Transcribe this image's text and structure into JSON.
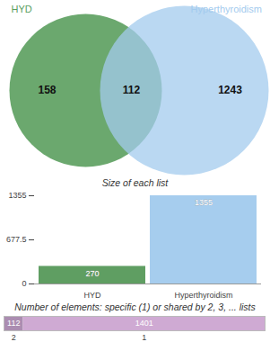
{
  "chart_data": [
    {
      "type": "venn",
      "sets": [
        {
          "name": "HYD",
          "color": "#5b9e5e",
          "only": 158
        },
        {
          "name": "Hyperthyroidism",
          "color": "#a3cbee",
          "only": 1243
        }
      ],
      "shared": 112
    },
    {
      "type": "bar",
      "title": "Size of each list",
      "categories": [
        "HYD",
        "Hyperthyroidism"
      ],
      "values": [
        270,
        1355
      ],
      "colors": [
        "#5f9e62",
        "#a6cdee"
      ],
      "ylim": [
        0,
        1355
      ],
      "yticks": [
        0,
        677.5,
        1355
      ],
      "data_labels": true
    },
    {
      "type": "bar",
      "orientation": "horizontal",
      "stacked": true,
      "title": "Number of elements: specific (1) or shared by 2, 3, ... lists",
      "categories": [
        "2",
        "1"
      ],
      "values": [
        112,
        1401
      ],
      "colors": [
        "#ab8db1",
        "#cfaad3"
      ],
      "xlim": [
        0,
        1513
      ],
      "data_labels": true
    }
  ]
}
